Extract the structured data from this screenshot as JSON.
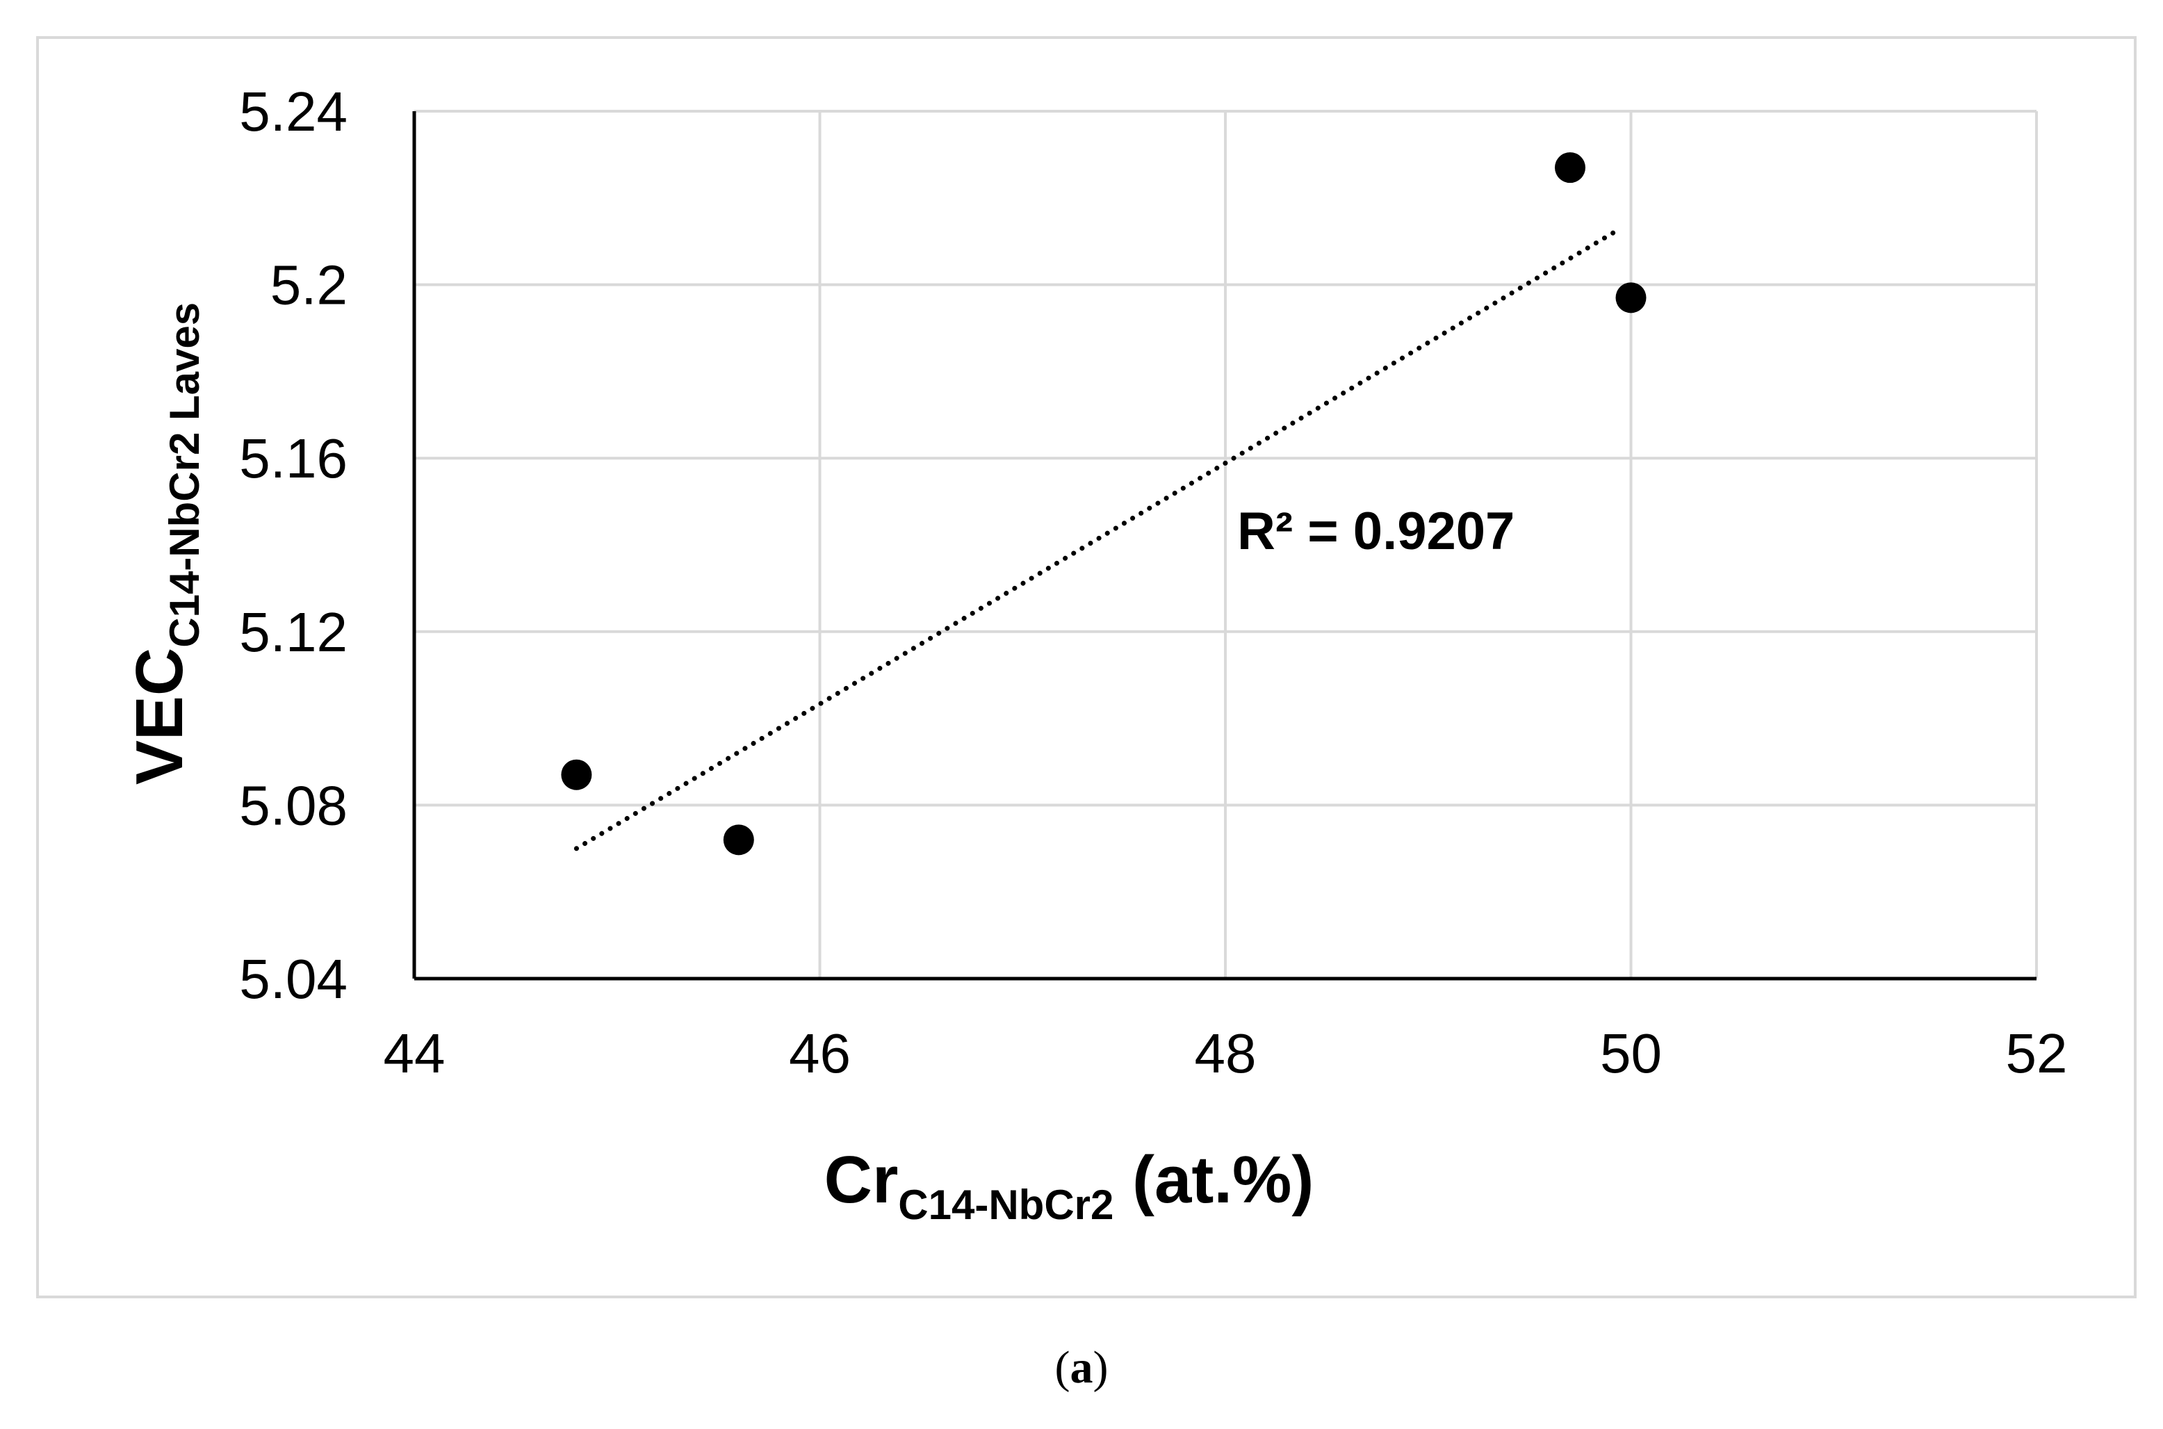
{
  "chart_data": {
    "type": "scatter",
    "xlabel": {
      "main": "Cr",
      "subscript": "C14-NbCr2",
      "suffix": " (at.%)"
    },
    "ylabel": {
      "main": "VEC",
      "subscript": "C14-NbCr2 Laves"
    },
    "xlim": [
      44,
      52
    ],
    "ylim": [
      5.04,
      5.24
    ],
    "x_ticks": [
      "44",
      "46",
      "48",
      "50",
      "52"
    ],
    "y_ticks": [
      "5.04",
      "5.08",
      "5.12",
      "5.16",
      "5.2",
      "5.24"
    ],
    "grid": true,
    "series": [
      {
        "points": [
          {
            "x": 44.8,
            "y": 5.087
          },
          {
            "x": 45.6,
            "y": 5.072
          },
          {
            "x": 49.7,
            "y": 5.227
          },
          {
            "x": 50.0,
            "y": 5.197
          }
        ],
        "marker_color": "#000000"
      }
    ],
    "trendline": {
      "type": "linear",
      "style": "dotted",
      "x_range": [
        44.8,
        49.95
      ],
      "y_range": [
        5.07,
        5.213
      ],
      "annotation": "R² = 0.9207"
    },
    "colors": {
      "grid": "#d9d9d9",
      "axis": "#000000",
      "marker": "#000000"
    }
  },
  "panel_label": {
    "open": "(",
    "letter": "a",
    "close": ")"
  }
}
